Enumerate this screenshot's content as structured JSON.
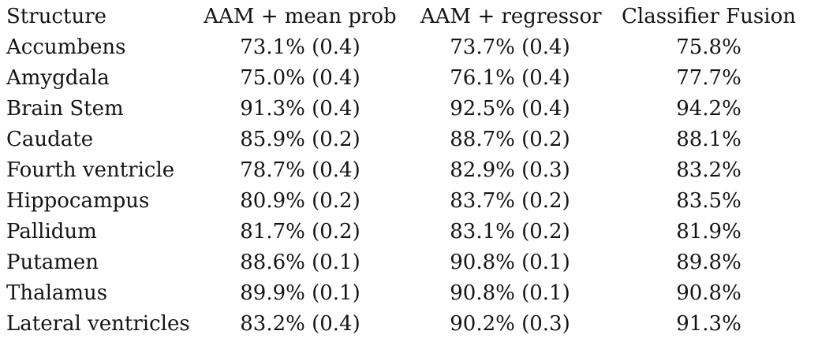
{
  "table": {
    "columns": [
      "Structure",
      "AAM + mean prob",
      "AAM + regressor",
      "Classifier Fusion"
    ],
    "rows": [
      {
        "structure": "Accumbens",
        "aam_mean_prob": "73.1% (0.4)",
        "aam_regressor": "73.7% (0.4)",
        "classifier_fusion": "75.8%"
      },
      {
        "structure": "Amygdala",
        "aam_mean_prob": "75.0% (0.4)",
        "aam_regressor": "76.1% (0.4)",
        "classifier_fusion": "77.7%"
      },
      {
        "structure": "Brain Stem",
        "aam_mean_prob": "91.3% (0.4)",
        "aam_regressor": "92.5% (0.4)",
        "classifier_fusion": "94.2%"
      },
      {
        "structure": "Caudate",
        "aam_mean_prob": "85.9% (0.2)",
        "aam_regressor": "88.7% (0.2)",
        "classifier_fusion": "88.1%"
      },
      {
        "structure": "Fourth ventricle",
        "aam_mean_prob": "78.7% (0.4)",
        "aam_regressor": "82.9% (0.3)",
        "classifier_fusion": "83.2%"
      },
      {
        "structure": "Hippocampus",
        "aam_mean_prob": "80.9% (0.2)",
        "aam_regressor": "83.7% (0.2)",
        "classifier_fusion": "83.5%"
      },
      {
        "structure": "Pallidum",
        "aam_mean_prob": "81.7% (0.2)",
        "aam_regressor": "83.1% (0.2)",
        "classifier_fusion": "81.9%"
      },
      {
        "structure": "Putamen",
        "aam_mean_prob": "88.6% (0.1)",
        "aam_regressor": "90.8% (0.1)",
        "classifier_fusion": "89.8%"
      },
      {
        "structure": "Thalamus",
        "aam_mean_prob": "89.9% (0.1)",
        "aam_regressor": "90.8% (0.1)",
        "classifier_fusion": "90.8%"
      },
      {
        "structure": "Lateral ventricles",
        "aam_mean_prob": "83.2% (0.4)",
        "aam_regressor": "90.2% (0.3)",
        "classifier_fusion": "91.3%"
      }
    ]
  },
  "chart_data": {
    "type": "table",
    "title": "",
    "columns": [
      "Structure",
      "AAM + mean prob",
      "AAM + regressor",
      "Classifier Fusion"
    ],
    "categories": [
      "Accumbens",
      "Amygdala",
      "Brain Stem",
      "Caudate",
      "Fourth ventricle",
      "Hippocampus",
      "Pallidum",
      "Putamen",
      "Thalamus",
      "Lateral ventricles"
    ],
    "series": [
      {
        "name": "AAM + mean prob (%)",
        "values": [
          73.1,
          75.0,
          91.3,
          85.9,
          78.7,
          80.9,
          81.7,
          88.6,
          89.9,
          83.2
        ],
        "std": [
          0.4,
          0.4,
          0.4,
          0.2,
          0.4,
          0.2,
          0.2,
          0.1,
          0.1,
          0.4
        ]
      },
      {
        "name": "AAM + regressor (%)",
        "values": [
          73.7,
          76.1,
          92.5,
          88.7,
          82.9,
          83.7,
          83.1,
          90.8,
          90.8,
          90.2
        ],
        "std": [
          0.4,
          0.4,
          0.4,
          0.2,
          0.3,
          0.2,
          0.2,
          0.1,
          0.1,
          0.3
        ]
      },
      {
        "name": "Classifier Fusion (%)",
        "values": [
          75.8,
          77.7,
          94.2,
          88.1,
          83.2,
          83.5,
          81.9,
          89.8,
          90.8,
          91.3
        ]
      }
    ]
  }
}
